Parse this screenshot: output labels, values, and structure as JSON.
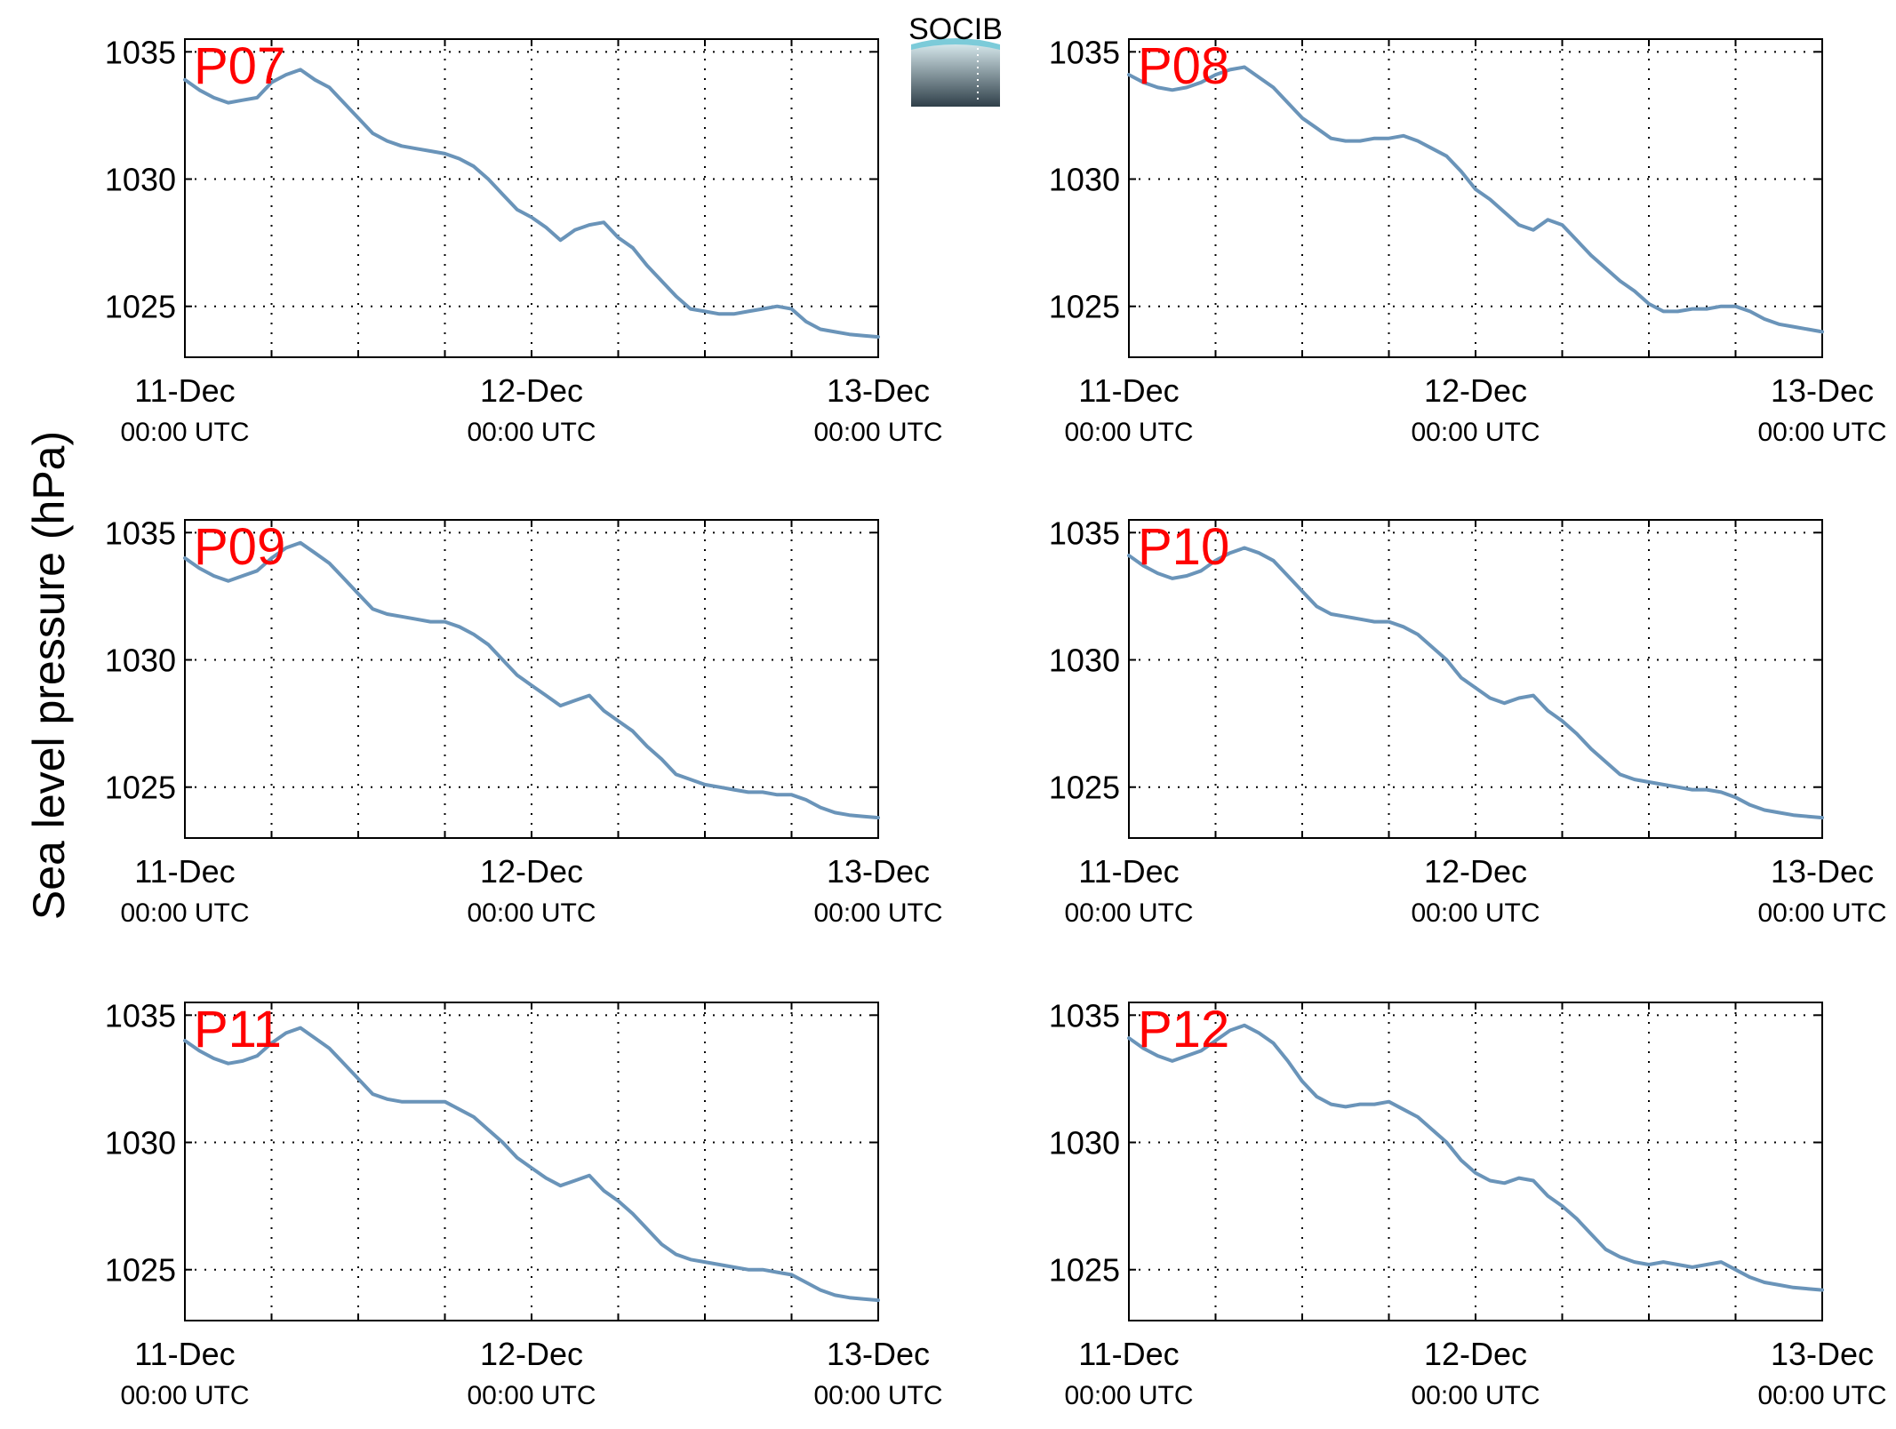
{
  "figure": {
    "ylabel": "Sea level pressure (hPa)",
    "logo_text": "SOCIB",
    "colors": {
      "line": "#6a94b9",
      "panel_label": "#ff0000",
      "axis": "#000000",
      "grid": "#000000",
      "logo_text": "#7ccbd9",
      "logo_top": "#d3e5e9",
      "logo_bottom": "#2f3f49"
    }
  },
  "chart_data": [
    {
      "type": "line",
      "label": "P07",
      "x_ticks": [
        {
          "date": "11-Dec",
          "time": "00:00 UTC"
        },
        {
          "date": "12-Dec",
          "time": "00:00 UTC"
        },
        {
          "date": "13-Dec",
          "time": "00:00 UTC"
        }
      ],
      "x_range_hours": [
        0,
        48
      ],
      "ylim": [
        1023,
        1035.5
      ],
      "yticks": [
        1025,
        1030,
        1035
      ],
      "grid": true,
      "x": [
        0,
        1,
        2,
        3,
        4,
        5,
        6,
        7,
        8,
        9,
        10,
        11,
        12,
        13,
        14,
        15,
        16,
        17,
        18,
        19,
        20,
        21,
        22,
        23,
        24,
        25,
        26,
        27,
        28,
        29,
        30,
        31,
        32,
        33,
        34,
        35,
        36,
        37,
        38,
        39,
        40,
        41,
        42,
        43,
        44,
        45,
        46,
        47,
        48
      ],
      "y": [
        1033.9,
        1033.5,
        1033.2,
        1033.0,
        1033.1,
        1033.2,
        1033.8,
        1034.1,
        1034.3,
        1033.9,
        1033.6,
        1033.0,
        1032.4,
        1031.8,
        1031.5,
        1031.3,
        1031.2,
        1031.1,
        1031.0,
        1030.8,
        1030.5,
        1030.0,
        1029.4,
        1028.8,
        1028.5,
        1028.1,
        1027.6,
        1028.0,
        1028.2,
        1028.3,
        1027.7,
        1027.3,
        1026.6,
        1026.0,
        1025.4,
        1024.9,
        1024.8,
        1024.7,
        1024.7,
        1024.8,
        1024.9,
        1025.0,
        1024.9,
        1024.4,
        1024.1,
        1024.0,
        1023.9,
        1023.85,
        1023.8
      ]
    },
    {
      "type": "line",
      "label": "P08",
      "x_ticks": [
        {
          "date": "11-Dec",
          "time": "00:00 UTC"
        },
        {
          "date": "12-Dec",
          "time": "00:00 UTC"
        },
        {
          "date": "13-Dec",
          "time": "00:00 UTC"
        }
      ],
      "x_range_hours": [
        0,
        48
      ],
      "ylim": [
        1023,
        1035.5
      ],
      "yticks": [
        1025,
        1030,
        1035
      ],
      "grid": true,
      "x": [
        0,
        1,
        2,
        3,
        4,
        5,
        6,
        7,
        8,
        9,
        10,
        11,
        12,
        13,
        14,
        15,
        16,
        17,
        18,
        19,
        20,
        21,
        22,
        23,
        24,
        25,
        26,
        27,
        28,
        29,
        30,
        31,
        32,
        33,
        34,
        35,
        36,
        37,
        38,
        39,
        40,
        41,
        42,
        43,
        44,
        45,
        46,
        47,
        48
      ],
      "y": [
        1034.1,
        1033.8,
        1033.6,
        1033.5,
        1033.6,
        1033.8,
        1034.1,
        1034.3,
        1034.4,
        1034.0,
        1033.6,
        1033.0,
        1032.4,
        1032.0,
        1031.6,
        1031.5,
        1031.5,
        1031.6,
        1031.6,
        1031.7,
        1031.5,
        1031.2,
        1030.9,
        1030.3,
        1029.6,
        1029.2,
        1028.7,
        1028.2,
        1028.0,
        1028.4,
        1028.2,
        1027.6,
        1027.0,
        1026.5,
        1026.0,
        1025.6,
        1025.1,
        1024.8,
        1024.8,
        1024.9,
        1024.9,
        1025.0,
        1025.0,
        1024.8,
        1024.5,
        1024.3,
        1024.2,
        1024.1,
        1024.0
      ]
    },
    {
      "type": "line",
      "label": "P09",
      "x_ticks": [
        {
          "date": "11-Dec",
          "time": "00:00 UTC"
        },
        {
          "date": "12-Dec",
          "time": "00:00 UTC"
        },
        {
          "date": "13-Dec",
          "time": "00:00 UTC"
        }
      ],
      "x_range_hours": [
        0,
        48
      ],
      "ylim": [
        1023,
        1035.5
      ],
      "yticks": [
        1025,
        1030,
        1035
      ],
      "grid": true,
      "x": [
        0,
        1,
        2,
        3,
        4,
        5,
        6,
        7,
        8,
        9,
        10,
        11,
        12,
        13,
        14,
        15,
        16,
        17,
        18,
        19,
        20,
        21,
        22,
        23,
        24,
        25,
        26,
        27,
        28,
        29,
        30,
        31,
        32,
        33,
        34,
        35,
        36,
        37,
        38,
        39,
        40,
        41,
        42,
        43,
        44,
        45,
        46,
        47,
        48
      ],
      "y": [
        1034.0,
        1033.6,
        1033.3,
        1033.1,
        1033.3,
        1033.5,
        1034.0,
        1034.4,
        1034.6,
        1034.2,
        1033.8,
        1033.2,
        1032.6,
        1032.0,
        1031.8,
        1031.7,
        1031.6,
        1031.5,
        1031.5,
        1031.3,
        1031.0,
        1030.6,
        1030.0,
        1029.4,
        1029.0,
        1028.6,
        1028.2,
        1028.4,
        1028.6,
        1028.0,
        1027.6,
        1027.2,
        1026.6,
        1026.1,
        1025.5,
        1025.3,
        1025.1,
        1025.0,
        1024.9,
        1024.8,
        1024.8,
        1024.7,
        1024.7,
        1024.5,
        1024.2,
        1024.0,
        1023.9,
        1023.85,
        1023.8
      ]
    },
    {
      "type": "line",
      "label": "P10",
      "x_ticks": [
        {
          "date": "11-Dec",
          "time": "00:00 UTC"
        },
        {
          "date": "12-Dec",
          "time": "00:00 UTC"
        },
        {
          "date": "13-Dec",
          "time": "00:00 UTC"
        }
      ],
      "x_range_hours": [
        0,
        48
      ],
      "ylim": [
        1023,
        1035.5
      ],
      "yticks": [
        1025,
        1030,
        1035
      ],
      "grid": true,
      "x": [
        0,
        1,
        2,
        3,
        4,
        5,
        6,
        7,
        8,
        9,
        10,
        11,
        12,
        13,
        14,
        15,
        16,
        17,
        18,
        19,
        20,
        21,
        22,
        23,
        24,
        25,
        26,
        27,
        28,
        29,
        30,
        31,
        32,
        33,
        34,
        35,
        36,
        37,
        38,
        39,
        40,
        41,
        42,
        43,
        44,
        45,
        46,
        47,
        48
      ],
      "y": [
        1034.1,
        1033.7,
        1033.4,
        1033.2,
        1033.3,
        1033.5,
        1033.9,
        1034.2,
        1034.4,
        1034.2,
        1033.9,
        1033.3,
        1032.7,
        1032.1,
        1031.8,
        1031.7,
        1031.6,
        1031.5,
        1031.5,
        1031.3,
        1031.0,
        1030.5,
        1030.0,
        1029.3,
        1028.9,
        1028.5,
        1028.3,
        1028.5,
        1028.6,
        1028.0,
        1027.6,
        1027.1,
        1026.5,
        1026.0,
        1025.5,
        1025.3,
        1025.2,
        1025.1,
        1025.0,
        1024.9,
        1024.9,
        1024.8,
        1024.6,
        1024.3,
        1024.1,
        1024.0,
        1023.9,
        1023.85,
        1023.8
      ]
    },
    {
      "type": "line",
      "label": "P11",
      "x_ticks": [
        {
          "date": "11-Dec",
          "time": "00:00 UTC"
        },
        {
          "date": "12-Dec",
          "time": "00:00 UTC"
        },
        {
          "date": "13-Dec",
          "time": "00:00 UTC"
        }
      ],
      "x_range_hours": [
        0,
        48
      ],
      "ylim": [
        1023,
        1035.5
      ],
      "yticks": [
        1025,
        1030,
        1035
      ],
      "grid": true,
      "x": [
        0,
        1,
        2,
        3,
        4,
        5,
        6,
        7,
        8,
        9,
        10,
        11,
        12,
        13,
        14,
        15,
        16,
        17,
        18,
        19,
        20,
        21,
        22,
        23,
        24,
        25,
        26,
        27,
        28,
        29,
        30,
        31,
        32,
        33,
        34,
        35,
        36,
        37,
        38,
        39,
        40,
        41,
        42,
        43,
        44,
        45,
        46,
        47,
        48
      ],
      "y": [
        1034.0,
        1033.6,
        1033.3,
        1033.1,
        1033.2,
        1033.4,
        1033.9,
        1034.3,
        1034.5,
        1034.1,
        1033.7,
        1033.1,
        1032.5,
        1031.9,
        1031.7,
        1031.6,
        1031.6,
        1031.6,
        1031.6,
        1031.3,
        1031.0,
        1030.5,
        1030.0,
        1029.4,
        1029.0,
        1028.6,
        1028.3,
        1028.5,
        1028.7,
        1028.1,
        1027.7,
        1027.2,
        1026.6,
        1026.0,
        1025.6,
        1025.4,
        1025.3,
        1025.2,
        1025.1,
        1025.0,
        1025.0,
        1024.9,
        1024.8,
        1024.5,
        1024.2,
        1024.0,
        1023.9,
        1023.85,
        1023.8
      ]
    },
    {
      "type": "line",
      "label": "P12",
      "x_ticks": [
        {
          "date": "11-Dec",
          "time": "00:00 UTC"
        },
        {
          "date": "12-Dec",
          "time": "00:00 UTC"
        },
        {
          "date": "13-Dec",
          "time": "00:00 UTC"
        }
      ],
      "x_range_hours": [
        0,
        48
      ],
      "ylim": [
        1023,
        1035.5
      ],
      "yticks": [
        1025,
        1030,
        1035
      ],
      "grid": true,
      "x": [
        0,
        1,
        2,
        3,
        4,
        5,
        6,
        7,
        8,
        9,
        10,
        11,
        12,
        13,
        14,
        15,
        16,
        17,
        18,
        19,
        20,
        21,
        22,
        23,
        24,
        25,
        26,
        27,
        28,
        29,
        30,
        31,
        32,
        33,
        34,
        35,
        36,
        37,
        38,
        39,
        40,
        41,
        42,
        43,
        44,
        45,
        46,
        47,
        48
      ],
      "y": [
        1034.1,
        1033.7,
        1033.4,
        1033.2,
        1033.4,
        1033.6,
        1034.0,
        1034.4,
        1034.6,
        1034.3,
        1033.9,
        1033.2,
        1032.4,
        1031.8,
        1031.5,
        1031.4,
        1031.5,
        1031.5,
        1031.6,
        1031.3,
        1031.0,
        1030.5,
        1030.0,
        1029.3,
        1028.8,
        1028.5,
        1028.4,
        1028.6,
        1028.5,
        1027.9,
        1027.5,
        1027.0,
        1026.4,
        1025.8,
        1025.5,
        1025.3,
        1025.2,
        1025.3,
        1025.2,
        1025.1,
        1025.2,
        1025.3,
        1025.0,
        1024.7,
        1024.5,
        1024.4,
        1024.3,
        1024.25,
        1024.2
      ]
    }
  ]
}
